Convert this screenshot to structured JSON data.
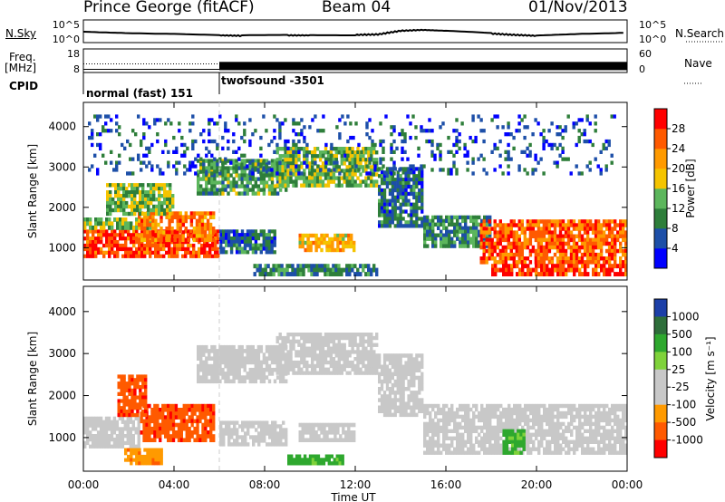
{
  "header": {
    "station": "Prince George (fitACF)",
    "beam": "Beam 04",
    "date": "01/Nov/2013"
  },
  "labels": {
    "nsky": "N.Sky",
    "nsearch": "N.Search",
    "freq": "Freq.",
    "freq_unit": "[MHz]",
    "nave": "Nave",
    "cpid": "CPID",
    "ylabel": "Slant Range [km]",
    "xlabel": "Time UT",
    "power_label": "Power [dB]",
    "velocity_label": "Velocity [m s⁻¹]"
  },
  "ticks": {
    "noise_left": [
      "10^5",
      "10^0"
    ],
    "noise_right": [
      "10^5",
      "10^0"
    ],
    "freq_left": [
      "18",
      "8"
    ],
    "freq_right": [
      "60",
      "0"
    ]
  },
  "cpid_segments": [
    {
      "label": "normal (fast) 151",
      "start_hour": 0,
      "end_hour": 6
    },
    {
      "label": "twofsound -3501",
      "start_hour": 6,
      "end_hour": 24
    }
  ],
  "colors": {
    "power_scale": [
      "#0000ff",
      "#1d4fa8",
      "#2e7e3a",
      "#5cb65c",
      "#f5c400",
      "#ff9a00",
      "#ff5a00",
      "#ff0000"
    ],
    "velocity_scale": [
      "#1c3fa8",
      "#2e6e3a",
      "#2ea82e",
      "#7fd23a",
      "#c8c8c8",
      "#c8c8c8",
      "#ff9a00",
      "#ff5a00",
      "#ff0000"
    ]
  },
  "chart_data": [
    {
      "type": "line",
      "name_key": "noise",
      "note_shown": "N.Sky / N.Search noise traces",
      "x": [
        0,
        2,
        4,
        6,
        7,
        9,
        10,
        12,
        13,
        14,
        15,
        16,
        18,
        19,
        20,
        22,
        24
      ],
      "y_sky": [
        2.4,
        2.2,
        2.0,
        1.6,
        1.5,
        1.6,
        1.6,
        1.7,
        1.8,
        2.6,
        2.8,
        2.6,
        2.0,
        1.7,
        1.5,
        2.0,
        2.3
      ],
      "ylim": [
        0,
        5
      ]
    },
    {
      "type": "line",
      "name_key": "freq",
      "x": [
        0,
        6,
        6,
        24
      ],
      "y_freq": [
        10.5,
        10.5,
        10.5,
        10.5
      ],
      "ylim": [
        8,
        18
      ]
    },
    {
      "type": "heatmap",
      "panel": "power",
      "xlim": [
        0,
        24
      ],
      "ylim": [
        200,
        4600
      ],
      "ylabel": "Slant Range [km]",
      "yticks": [
        1000,
        2000,
        3000,
        4000
      ],
      "colorbar_ticks": [
        4,
        8,
        12,
        16,
        20,
        24,
        28
      ],
      "colorbar_range": [
        0,
        32
      ],
      "regions": [
        {
          "t0": 0.0,
          "t1": 6.0,
          "r0": 750,
          "r1": 1450,
          "level": 28
        },
        {
          "t0": 0.0,
          "t1": 3.0,
          "r0": 1450,
          "r1": 1750,
          "level": 14
        },
        {
          "t0": 2.4,
          "t1": 5.8,
          "r0": 1150,
          "r1": 1900,
          "level": 24
        },
        {
          "t0": 6.0,
          "t1": 8.5,
          "r0": 850,
          "r1": 1450,
          "level": 8
        },
        {
          "t0": 1.0,
          "t1": 4.0,
          "r0": 1800,
          "r1": 2600,
          "level": 14
        },
        {
          "t0": 5.0,
          "t1": 9.0,
          "r0": 2300,
          "r1": 3200,
          "level": 12
        },
        {
          "t0": 8.5,
          "t1": 13.0,
          "r0": 2500,
          "r1": 3500,
          "level": 14
        },
        {
          "t0": 13.0,
          "t1": 15.0,
          "r0": 1500,
          "r1": 3000,
          "level": 8
        },
        {
          "t0": 9.5,
          "t1": 12.0,
          "r0": 900,
          "r1": 1350,
          "level": 20
        },
        {
          "t0": 7.5,
          "t1": 13.0,
          "r0": 300,
          "r1": 600,
          "level": 10
        },
        {
          "t0": 15.0,
          "t1": 18.0,
          "r0": 1000,
          "r1": 1800,
          "level": 10
        },
        {
          "t0": 17.5,
          "t1": 24.0,
          "r0": 600,
          "r1": 1700,
          "level": 26
        },
        {
          "t0": 18.0,
          "t1": 24.0,
          "r0": 300,
          "r1": 600,
          "level": 28
        },
        {
          "t0": 0.2,
          "t1": 23.5,
          "r0": 2800,
          "r1": 4300,
          "level": 6
        }
      ]
    },
    {
      "type": "heatmap",
      "panel": "velocity",
      "xlim": [
        0,
        24
      ],
      "ylim": [
        200,
        4600
      ],
      "xlabel": "Time UT",
      "ylabel": "Slant Range [km]",
      "xticks": [
        "00:00",
        "04:00",
        "08:00",
        "12:00",
        "16:00",
        "20:00",
        "00:00"
      ],
      "yticks": [
        1000,
        2000,
        3000,
        4000
      ],
      "colorbar_ticks": [
        1000,
        500,
        100,
        25,
        -25,
        -100,
        -500,
        -1000
      ],
      "regions": [
        {
          "t0": 0.0,
          "t1": 2.5,
          "r0": 750,
          "r1": 1500,
          "vel": 0
        },
        {
          "t0": 2.5,
          "t1": 5.8,
          "r0": 900,
          "r1": 1800,
          "vel": -900
        },
        {
          "t0": 1.5,
          "t1": 2.8,
          "r0": 1500,
          "r1": 2500,
          "vel": -900
        },
        {
          "t0": 1.8,
          "t1": 3.5,
          "r0": 350,
          "r1": 750,
          "vel": -400
        },
        {
          "t0": 6.0,
          "t1": 9.0,
          "r0": 800,
          "r1": 1400,
          "vel": 0
        },
        {
          "t0": 5.0,
          "t1": 9.0,
          "r0": 2300,
          "r1": 3200,
          "vel": 0
        },
        {
          "t0": 8.5,
          "t1": 13.0,
          "r0": 2500,
          "r1": 3500,
          "vel": 0
        },
        {
          "t0": 13.0,
          "t1": 15.0,
          "r0": 1500,
          "r1": 3000,
          "vel": 0
        },
        {
          "t0": 9.5,
          "t1": 12.0,
          "r0": 900,
          "r1": 1350,
          "vel": 0
        },
        {
          "t0": 9.0,
          "t1": 11.5,
          "r0": 350,
          "r1": 600,
          "vel": 200
        },
        {
          "t0": 15.0,
          "t1": 24.0,
          "r0": 600,
          "r1": 1800,
          "vel": 0
        },
        {
          "t0": 18.5,
          "t1": 19.5,
          "r0": 600,
          "r1": 1200,
          "vel": 200
        }
      ]
    }
  ]
}
